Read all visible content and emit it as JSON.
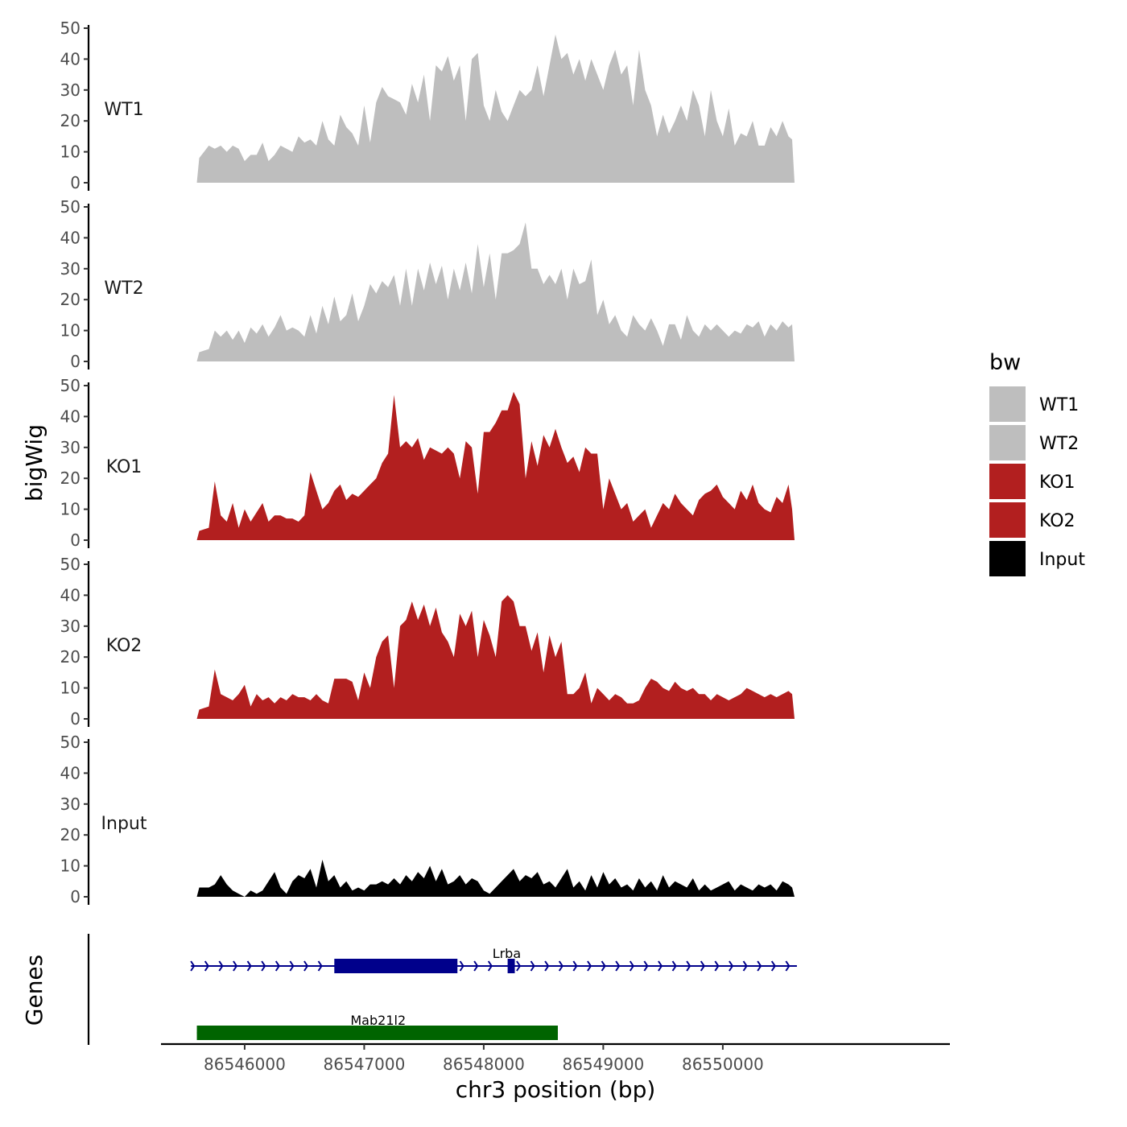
{
  "chart_data": {
    "type": "area",
    "xlabel": "chr3 position (bp)",
    "ylabel": "bigWig",
    "genes_label": "Genes",
    "xlim": [
      86545300,
      86551900
    ],
    "x_ticks": [
      86546000,
      86547000,
      86548000,
      86549000,
      86550000
    ],
    "y_ticks": [
      0,
      10,
      20,
      30,
      40,
      50
    ],
    "ylim": [
      0,
      50
    ],
    "data_range": [
      86545600,
      86550600
    ],
    "grid": false,
    "legend": {
      "title": "bw",
      "position": "right",
      "entries": [
        {
          "label": "WT1",
          "color": "#bebebe"
        },
        {
          "label": "WT2",
          "color": "#bebebe"
        },
        {
          "label": "KO1",
          "color": "#b21f1f"
        },
        {
          "label": "KO2",
          "color": "#b21f1f"
        },
        {
          "label": "Input",
          "color": "#000000"
        }
      ]
    },
    "series": [
      {
        "name": "WT1",
        "color": "#bebebe",
        "x": [
          86545600,
          86545620,
          86545700,
          86545750,
          86545800,
          86545850,
          86545900,
          86545950,
          86546000,
          86546050,
          86546100,
          86546150,
          86546200,
          86546250,
          86546300,
          86546350,
          86546400,
          86546450,
          86546500,
          86546550,
          86546600,
          86546650,
          86546700,
          86546750,
          86546800,
          86546850,
          86546900,
          86546950,
          86547000,
          86547050,
          86547100,
          86547150,
          86547200,
          86547250,
          86547300,
          86547350,
          86547400,
          86547450,
          86547500,
          86547550,
          86547600,
          86547650,
          86547700,
          86547750,
          86547800,
          86547850,
          86547900,
          86547950,
          86548000,
          86548050,
          86548100,
          86548150,
          86548200,
          86548250,
          86548300,
          86548350,
          86548400,
          86548450,
          86548500,
          86548550,
          86548600,
          86548650,
          86548700,
          86548750,
          86548800,
          86548850,
          86548900,
          86548950,
          86549000,
          86549050,
          86549100,
          86549150,
          86549200,
          86549250,
          86549300,
          86549350,
          86549400,
          86549450,
          86549500,
          86549550,
          86549600,
          86549650,
          86549700,
          86549750,
          86549800,
          86549850,
          86549900,
          86549950,
          86550000,
          86550050,
          86550100,
          86550150,
          86550200,
          86550250,
          86550300,
          86550350,
          86550400,
          86550450,
          86550500,
          86550550,
          86550580,
          86550600
        ],
        "values": [
          0,
          8,
          12,
          11,
          12,
          10,
          12,
          11,
          7,
          9,
          9,
          13,
          7,
          9,
          12,
          11,
          10,
          15,
          13,
          14,
          12,
          20,
          14,
          12,
          22,
          18,
          16,
          12,
          25,
          13,
          26,
          31,
          28,
          27,
          26,
          22,
          32,
          26,
          35,
          20,
          38,
          36,
          41,
          33,
          38,
          20,
          40,
          42,
          25,
          20,
          30,
          23,
          20,
          25,
          30,
          28,
          30,
          38,
          28,
          38,
          48,
          40,
          42,
          35,
          40,
          33,
          40,
          35,
          30,
          38,
          43,
          35,
          38,
          25,
          43,
          30,
          25,
          15,
          22,
          16,
          20,
          25,
          20,
          30,
          25,
          15,
          30,
          20,
          15,
          24,
          12,
          16,
          15,
          20,
          12,
          12,
          18,
          15,
          20,
          15,
          14,
          0
        ]
      },
      {
        "name": "WT2",
        "color": "#bebebe",
        "x": [
          86545600,
          86545620,
          86545700,
          86545750,
          86545800,
          86545850,
          86545900,
          86545950,
          86546000,
          86546050,
          86546100,
          86546150,
          86546200,
          86546250,
          86546300,
          86546350,
          86546400,
          86546450,
          86546500,
          86546550,
          86546600,
          86546650,
          86546700,
          86546750,
          86546800,
          86546850,
          86546900,
          86546950,
          86547000,
          86547050,
          86547100,
          86547150,
          86547200,
          86547250,
          86547300,
          86547350,
          86547400,
          86547450,
          86547500,
          86547550,
          86547600,
          86547650,
          86547700,
          86547750,
          86547800,
          86547850,
          86547900,
          86547950,
          86548000,
          86548050,
          86548100,
          86548150,
          86548200,
          86548250,
          86548300,
          86548350,
          86548400,
          86548450,
          86548500,
          86548550,
          86548600,
          86548650,
          86548700,
          86548750,
          86548800,
          86548850,
          86548900,
          86548950,
          86549000,
          86549050,
          86549100,
          86549150,
          86549200,
          86549250,
          86549300,
          86549350,
          86549400,
          86549450,
          86549500,
          86549550,
          86549600,
          86549650,
          86549700,
          86549750,
          86549800,
          86549850,
          86549900,
          86549950,
          86550000,
          86550050,
          86550100,
          86550150,
          86550200,
          86550250,
          86550300,
          86550350,
          86550400,
          86550450,
          86550500,
          86550550,
          86550580,
          86550600
        ],
        "values": [
          0,
          3,
          4,
          10,
          8,
          10,
          7,
          10,
          6,
          11,
          9,
          12,
          8,
          11,
          15,
          10,
          11,
          10,
          8,
          15,
          9,
          18,
          12,
          21,
          13,
          15,
          22,
          13,
          18,
          25,
          22,
          26,
          24,
          28,
          18,
          30,
          18,
          30,
          23,
          32,
          25,
          31,
          20,
          30,
          23,
          32,
          22,
          38,
          24,
          35,
          20,
          35,
          35,
          36,
          38,
          45,
          30,
          30,
          25,
          28,
          25,
          30,
          20,
          30,
          25,
          26,
          33,
          15,
          20,
          12,
          15,
          10,
          8,
          15,
          12,
          10,
          14,
          10,
          5,
          12,
          12,
          7,
          15,
          10,
          8,
          12,
          10,
          12,
          10,
          8,
          10,
          9,
          12,
          11,
          13,
          8,
          12,
          10,
          13,
          11,
          12,
          0
        ]
      },
      {
        "name": "KO1",
        "color": "#b21f1f",
        "x": [
          86545600,
          86545620,
          86545700,
          86545750,
          86545800,
          86545850,
          86545900,
          86545950,
          86546000,
          86546050,
          86546100,
          86546150,
          86546200,
          86546250,
          86546300,
          86546350,
          86546400,
          86546450,
          86546500,
          86546550,
          86546600,
          86546650,
          86546700,
          86546750,
          86546800,
          86546850,
          86546900,
          86546950,
          86547000,
          86547050,
          86547100,
          86547150,
          86547200,
          86547250,
          86547300,
          86547350,
          86547400,
          86547450,
          86547500,
          86547550,
          86547600,
          86547650,
          86547700,
          86547750,
          86547800,
          86547850,
          86547900,
          86547950,
          86548000,
          86548050,
          86548100,
          86548150,
          86548200,
          86548250,
          86548300,
          86548350,
          86548400,
          86548450,
          86548500,
          86548550,
          86548600,
          86548650,
          86548700,
          86548750,
          86548800,
          86548850,
          86548900,
          86548950,
          86549000,
          86549050,
          86549100,
          86549150,
          86549200,
          86549250,
          86549300,
          86549350,
          86549400,
          86549450,
          86549500,
          86549550,
          86549600,
          86549650,
          86549700,
          86549750,
          86549800,
          86549850,
          86549900,
          86549950,
          86550000,
          86550050,
          86550100,
          86550150,
          86550200,
          86550250,
          86550300,
          86550350,
          86550400,
          86550450,
          86550500,
          86550550,
          86550580,
          86550600
        ],
        "values": [
          0,
          3,
          4,
          19,
          8,
          6,
          12,
          4,
          10,
          6,
          9,
          12,
          6,
          8,
          8,
          7,
          7,
          6,
          8,
          22,
          16,
          10,
          12,
          16,
          18,
          13,
          15,
          14,
          16,
          18,
          20,
          25,
          28,
          47,
          30,
          32,
          30,
          33,
          26,
          30,
          29,
          28,
          30,
          28,
          20,
          32,
          30,
          15,
          35,
          35,
          38,
          42,
          42,
          48,
          44,
          20,
          32,
          24,
          34,
          30,
          36,
          30,
          25,
          27,
          22,
          30,
          28,
          28,
          10,
          20,
          15,
          10,
          12,
          6,
          8,
          10,
          4,
          8,
          12,
          10,
          15,
          12,
          10,
          8,
          13,
          15,
          16,
          18,
          14,
          12,
          10,
          16,
          13,
          18,
          12,
          10,
          9,
          14,
          12,
          18,
          10,
          0
        ]
      },
      {
        "name": "KO2",
        "color": "#b21f1f",
        "x": [
          86545600,
          86545620,
          86545700,
          86545750,
          86545800,
          86545850,
          86545900,
          86545950,
          86546000,
          86546050,
          86546100,
          86546150,
          86546200,
          86546250,
          86546300,
          86546350,
          86546400,
          86546450,
          86546500,
          86546550,
          86546600,
          86546650,
          86546700,
          86546750,
          86546800,
          86546850,
          86546900,
          86546950,
          86547000,
          86547050,
          86547100,
          86547150,
          86547200,
          86547250,
          86547300,
          86547350,
          86547400,
          86547450,
          86547500,
          86547550,
          86547600,
          86547650,
          86547700,
          86547750,
          86547800,
          86547850,
          86547900,
          86547950,
          86548000,
          86548050,
          86548100,
          86548150,
          86548200,
          86548250,
          86548300,
          86548350,
          86548400,
          86548450,
          86548500,
          86548550,
          86548600,
          86548650,
          86548700,
          86548750,
          86548800,
          86548850,
          86548900,
          86548950,
          86549000,
          86549050,
          86549100,
          86549150,
          86549200,
          86549250,
          86549300,
          86549350,
          86549400,
          86549450,
          86549500,
          86549550,
          86549600,
          86549650,
          86549700,
          86549750,
          86549800,
          86549850,
          86549900,
          86549950,
          86550000,
          86550050,
          86550100,
          86550150,
          86550200,
          86550250,
          86550300,
          86550350,
          86550400,
          86550450,
          86550500,
          86550550,
          86550580,
          86550600
        ],
        "values": [
          0,
          3,
          4,
          16,
          8,
          7,
          6,
          8,
          11,
          4,
          8,
          6,
          7,
          5,
          7,
          6,
          8,
          7,
          7,
          6,
          8,
          6,
          5,
          13,
          13,
          13,
          12,
          6,
          15,
          10,
          20,
          25,
          27,
          10,
          30,
          32,
          38,
          32,
          37,
          30,
          36,
          28,
          25,
          20,
          34,
          30,
          35,
          20,
          32,
          27,
          20,
          38,
          40,
          38,
          30,
          30,
          22,
          28,
          15,
          27,
          20,
          25,
          8,
          8,
          10,
          15,
          5,
          10,
          8,
          6,
          8,
          7,
          5,
          5,
          6,
          10,
          13,
          12,
          10,
          9,
          12,
          10,
          9,
          10,
          8,
          8,
          6,
          8,
          7,
          6,
          7,
          8,
          10,
          9,
          8,
          7,
          8,
          7,
          8,
          9,
          8,
          0
        ]
      },
      {
        "name": "Input",
        "color": "#000000",
        "x": [
          86545600,
          86545620,
          86545700,
          86545750,
          86545800,
          86545850,
          86545900,
          86545950,
          86546000,
          86546050,
          86546100,
          86546150,
          86546200,
          86546250,
          86546300,
          86546350,
          86546400,
          86546450,
          86546500,
          86546550,
          86546600,
          86546650,
          86546700,
          86546750,
          86546800,
          86546850,
          86546900,
          86546950,
          86547000,
          86547050,
          86547100,
          86547150,
          86547200,
          86547250,
          86547300,
          86547350,
          86547400,
          86547450,
          86547500,
          86547550,
          86547600,
          86547650,
          86547700,
          86547750,
          86547800,
          86547850,
          86547900,
          86547950,
          86548000,
          86548050,
          86548100,
          86548150,
          86548200,
          86548250,
          86548300,
          86548350,
          86548400,
          86548450,
          86548500,
          86548550,
          86548600,
          86548650,
          86548700,
          86548750,
          86548800,
          86548850,
          86548900,
          86548950,
          86549000,
          86549050,
          86549100,
          86549150,
          86549200,
          86549250,
          86549300,
          86549350,
          86549400,
          86549450,
          86549500,
          86549550,
          86549600,
          86549650,
          86549700,
          86549750,
          86549800,
          86549850,
          86549900,
          86549950,
          86550000,
          86550050,
          86550100,
          86550150,
          86550200,
          86550250,
          86550300,
          86550350,
          86550400,
          86550450,
          86550500,
          86550550,
          86550580,
          86550600
        ],
        "values": [
          0,
          3,
          3,
          4,
          7,
          4,
          2,
          1,
          0,
          2,
          1,
          2,
          5,
          8,
          3,
          1,
          5,
          7,
          6,
          9,
          3,
          12,
          5,
          7,
          3,
          5,
          2,
          3,
          2,
          4,
          4,
          5,
          4,
          6,
          4,
          7,
          5,
          8,
          6,
          10,
          5,
          9,
          4,
          5,
          7,
          4,
          6,
          5,
          2,
          1,
          3,
          5,
          7,
          9,
          5,
          7,
          6,
          8,
          4,
          5,
          3,
          6,
          9,
          3,
          5,
          2,
          7,
          3,
          8,
          4,
          6,
          3,
          4,
          2,
          6,
          3,
          5,
          2,
          7,
          3,
          5,
          4,
          3,
          6,
          2,
          4,
          2,
          3,
          4,
          5,
          2,
          4,
          3,
          2,
          4,
          3,
          4,
          2,
          5,
          4,
          3,
          0
        ]
      }
    ],
    "genes": [
      {
        "name": "Lrba",
        "color": "#00008b",
        "strand": "+",
        "start": 86545550,
        "end": 86550620,
        "exons": [
          {
            "start": 86546750,
            "end": 86547780
          },
          {
            "start": 86548200,
            "end": 86548260
          }
        ]
      },
      {
        "name": "Mab21l2",
        "color": "#006400",
        "strand": "+",
        "start": 86545600,
        "end": 86548620,
        "exons": [
          {
            "start": 86545600,
            "end": 86548620
          }
        ]
      }
    ]
  }
}
